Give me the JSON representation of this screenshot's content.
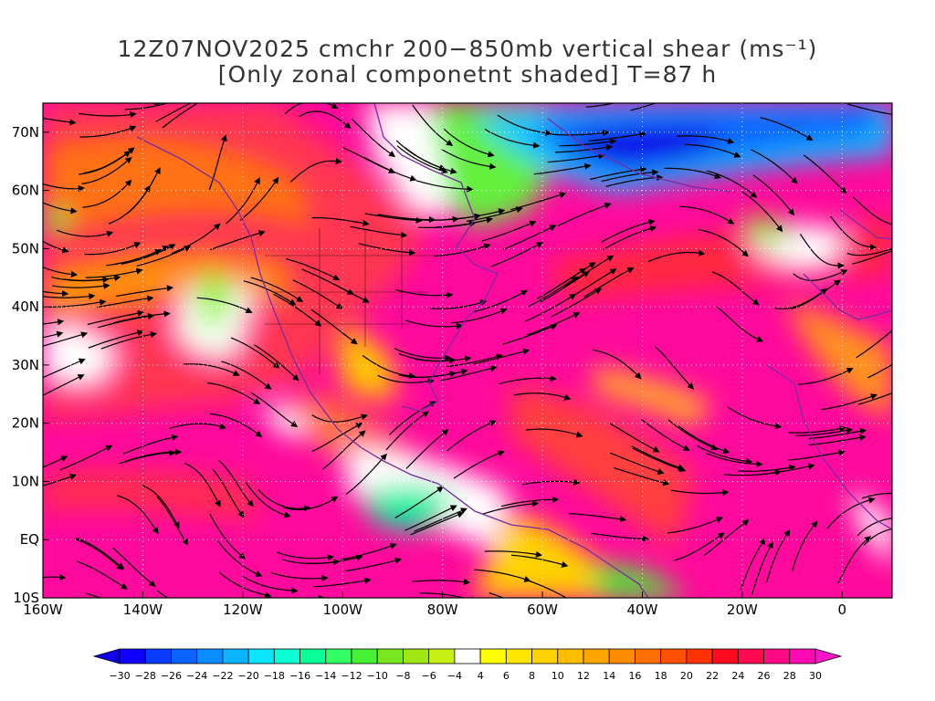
{
  "title": {
    "line1": "12Z07NOV2025 cmchr 200−850mb vertical shear (ms⁻¹)",
    "line2": "[Only zonal componetnt shaded] T=87 h"
  },
  "map": {
    "lon_range": [
      -160,
      10
    ],
    "lat_range": [
      -10,
      75
    ],
    "x_ticks": [
      {
        "value": -160,
        "label": "160W"
      },
      {
        "value": -140,
        "label": "140W"
      },
      {
        "value": -120,
        "label": "120W"
      },
      {
        "value": -100,
        "label": "100W"
      },
      {
        "value": -80,
        "label": "80W"
      },
      {
        "value": -60,
        "label": "60W"
      },
      {
        "value": -40,
        "label": "40W"
      },
      {
        "value": -20,
        "label": "20W"
      },
      {
        "value": 0,
        "label": "0"
      }
    ],
    "y_ticks": [
      {
        "value": -10,
        "label": "10S"
      },
      {
        "value": 0,
        "label": "EQ"
      },
      {
        "value": 10,
        "label": "10N"
      },
      {
        "value": 20,
        "label": "20N"
      },
      {
        "value": 30,
        "label": "30N"
      },
      {
        "value": 40,
        "label": "40N"
      },
      {
        "value": 50,
        "label": "50N"
      },
      {
        "value": 60,
        "label": "60N"
      },
      {
        "value": 70,
        "label": "70N"
      }
    ],
    "grid": "dotted"
  },
  "colorbar": {
    "levels": [
      -30,
      -28,
      -26,
      -24,
      -22,
      -20,
      -18,
      -16,
      -14,
      -12,
      -10,
      -8,
      -6,
      -4,
      4,
      6,
      8,
      10,
      12,
      14,
      16,
      18,
      20,
      22,
      24,
      26,
      28,
      30
    ],
    "colors": [
      "#1000ff",
      "#0a3cff",
      "#0a64ff",
      "#0a8cff",
      "#0ab4ff",
      "#0ae6ff",
      "#0affd2",
      "#0aff96",
      "#32ff64",
      "#46f032",
      "#78e61e",
      "#a0e614",
      "#c8f014",
      "#ffffff",
      "#ffff00",
      "#ffe600",
      "#ffd200",
      "#ffbe00",
      "#ffa500",
      "#ff8c00",
      "#ff6e00",
      "#ff5000",
      "#ff3200",
      "#ff0a1e",
      "#ff0a50",
      "#ff0a82",
      "#ff0ab4"
    ],
    "low_color": "#1000e6",
    "high_color": "#ff14c8"
  }
}
